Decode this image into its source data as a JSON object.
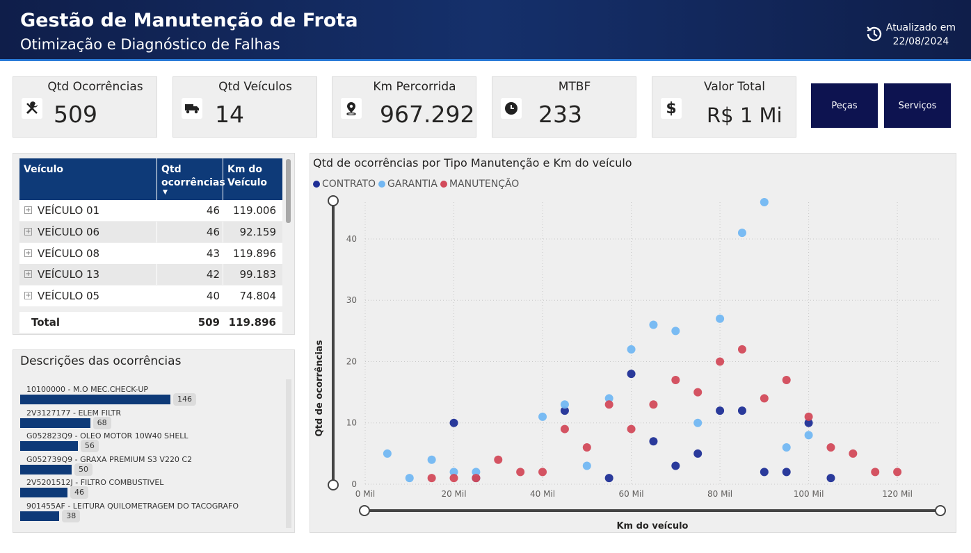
{
  "header": {
    "title": "Gestão de Manutenção de Frota",
    "subtitle": "Otimização e Diagnóstico de Falhas",
    "updated_line1": "Atualizado em",
    "updated_line2": "22/08/2024",
    "icon": "refresh-clock-icon"
  },
  "kpis": [
    {
      "label": "Qtd Ocorrências",
      "value": "509",
      "icon": "tools-icon"
    },
    {
      "label": "Qtd Veículos",
      "value": "14",
      "icon": "truck-icon"
    },
    {
      "label": "Km Percorrida",
      "value": "967.292",
      "icon": "map-pin-icon"
    },
    {
      "label": "MTBF",
      "value": "233",
      "icon": "clock-icon"
    },
    {
      "label": "Valor Total",
      "value": "R$ 1 Mi",
      "icon": "dollar-icon"
    }
  ],
  "buttons": {
    "pecas": "Peças",
    "servicos": "Serviços"
  },
  "table": {
    "headers": {
      "veiculo": "Veículo",
      "qtd1": "Qtd",
      "qtd2": "ocorrências",
      "km1": "Km do",
      "km2": "Veículo"
    },
    "rows": [
      {
        "veiculo": "VEÍCULO 01",
        "qtd": "46",
        "km": "119.006"
      },
      {
        "veiculo": "VEÍCULO 06",
        "qtd": "46",
        "km": "92.159"
      },
      {
        "veiculo": "VEÍCULO 08",
        "qtd": "43",
        "km": "119.896"
      },
      {
        "veiculo": "VEÍCULO 13",
        "qtd": "42",
        "km": "99.183"
      },
      {
        "veiculo": "VEÍCULO 05",
        "qtd": "40",
        "km": "74.804"
      }
    ],
    "total": {
      "label": "Total",
      "qtd": "509",
      "km": "119.896"
    }
  },
  "descriptions": {
    "title": "Descrições das ocorrências",
    "items": [
      {
        "label": "10100000 - M.O MEC.CHECK-UP",
        "value": 146
      },
      {
        "label": "2V3127177 - ELEM FILTR",
        "value": 68
      },
      {
        "label": "G052823Q9 - OLEO MOTOR 10W40 SHELL",
        "value": 56
      },
      {
        "label": "G052739Q9 - GRAXA PREMIUM S3 V220 C2",
        "value": 50
      },
      {
        "label": "2V5201512J - FILTRO COMBUSTIVEL",
        "value": 46
      },
      {
        "label": "901455AF - LEITURA QUILOMETRAGEM DO TACOGRAFO",
        "value": 38
      }
    ]
  },
  "chart_data": {
    "type": "scatter",
    "title": "Qtd de ocorrências por Tipo Manutenção e Km do veículo",
    "xlabel": "Km do veículo",
    "ylabel": "Qtd de ocorrências",
    "xlim": [
      0,
      125000
    ],
    "ylim": [
      0,
      46
    ],
    "x_ticks": [
      0,
      20000,
      40000,
      60000,
      80000,
      100000,
      120000
    ],
    "x_tick_labels": [
      "0 Mil",
      "20 Mil",
      "40 Mil",
      "60 Mil",
      "80 Mil",
      "100 Mil",
      "120 Mil"
    ],
    "y_ticks": [
      0,
      10,
      20,
      30,
      40
    ],
    "y_tick_labels": [
      "0",
      "10",
      "20",
      "30",
      "40"
    ],
    "grid": true,
    "legend_position": "top-left",
    "series": [
      {
        "name": "CONTRATO",
        "color": "#1f2f96",
        "points": [
          [
            20000,
            10
          ],
          [
            25000,
            1
          ],
          [
            45000,
            12
          ],
          [
            55000,
            1
          ],
          [
            60000,
            18
          ],
          [
            65000,
            7
          ],
          [
            70000,
            3
          ],
          [
            75000,
            5
          ],
          [
            80000,
            12
          ],
          [
            85000,
            12
          ],
          [
            90000,
            2
          ],
          [
            95000,
            2
          ],
          [
            100000,
            10
          ],
          [
            105000,
            1
          ]
        ]
      },
      {
        "name": "GARANTIA",
        "color": "#72b7f2",
        "points": [
          [
            5000,
            5
          ],
          [
            10000,
            1
          ],
          [
            15000,
            4
          ],
          [
            20000,
            2
          ],
          [
            25000,
            2
          ],
          [
            40000,
            11
          ],
          [
            45000,
            13
          ],
          [
            50000,
            3
          ],
          [
            55000,
            14
          ],
          [
            60000,
            22
          ],
          [
            65000,
            26
          ],
          [
            70000,
            25
          ],
          [
            75000,
            10
          ],
          [
            80000,
            27
          ],
          [
            85000,
            41
          ],
          [
            90000,
            46
          ],
          [
            95000,
            6
          ],
          [
            100000,
            8
          ]
        ]
      },
      {
        "name": "MANUTENÇÃO",
        "color": "#d24a5a",
        "points": [
          [
            15000,
            1
          ],
          [
            20000,
            1
          ],
          [
            25000,
            1
          ],
          [
            30000,
            4
          ],
          [
            35000,
            2
          ],
          [
            40000,
            2
          ],
          [
            45000,
            9
          ],
          [
            50000,
            6
          ],
          [
            55000,
            13
          ],
          [
            60000,
            9
          ],
          [
            65000,
            13
          ],
          [
            70000,
            17
          ],
          [
            75000,
            15
          ],
          [
            80000,
            20
          ],
          [
            85000,
            22
          ],
          [
            90000,
            14
          ],
          [
            95000,
            17
          ],
          [
            100000,
            11
          ],
          [
            105000,
            6
          ],
          [
            110000,
            5
          ],
          [
            115000,
            2
          ],
          [
            120000,
            2
          ]
        ]
      }
    ]
  }
}
